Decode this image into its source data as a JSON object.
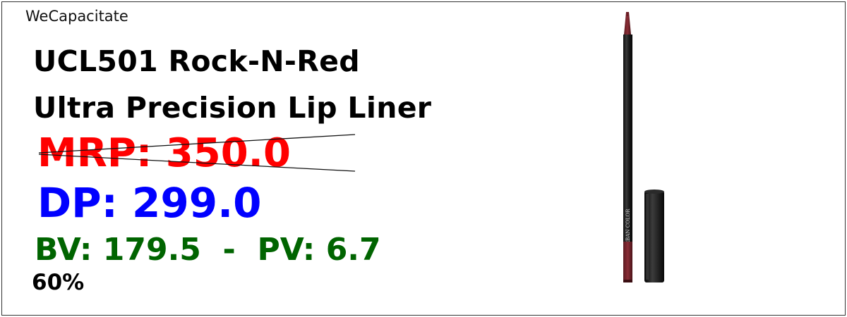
{
  "brand": "WeCapacitate",
  "product": {
    "code_name": "UCL501 Rock-N-Red",
    "name": "Ultra Precision Lip Liner",
    "image_label": "URBAN COLOR"
  },
  "pricing": {
    "mrp": "MRP: 350.0",
    "dp": "DP: 299.0",
    "bv_pv": "BV: 179.5  -  PV: 6.7",
    "discount": "60%"
  },
  "colors": {
    "mrp": "#ff0000",
    "dp": "#0000ff",
    "bv_pv": "#006400",
    "pencil_tip": "#7a1f28",
    "pencil_body": "#1a1a1a"
  }
}
